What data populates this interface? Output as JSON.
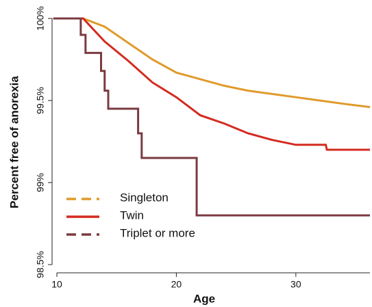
{
  "chart_data": {
    "type": "line",
    "x_label": "Age",
    "y_label": "Percent free of anorexia",
    "xlim": [
      9.6,
      36.2
    ],
    "ylim": [
      98.45,
      100.05
    ],
    "xticks": [
      10,
      20,
      30
    ],
    "yticks": [
      {
        "value": 98.5,
        "label": "98.5%"
      },
      {
        "value": 99,
        "label": "99%"
      },
      {
        "value": 99.5,
        "label": "99.5%"
      },
      {
        "value": 100,
        "label": "100%"
      }
    ],
    "legend": "lower left",
    "series": [
      {
        "name": "Singleton",
        "color": "#e09a2a",
        "step": false,
        "legend_dash": true,
        "x": [
          9.7,
          12.2,
          14,
          16,
          18,
          20,
          22,
          24,
          26,
          28,
          30,
          32,
          34,
          36.2
        ],
        "values": [
          100,
          100,
          99.95,
          99.85,
          99.75,
          99.67,
          99.63,
          99.59,
          99.56,
          99.54,
          99.52,
          99.5,
          99.48,
          99.46
        ]
      },
      {
        "name": "Twin",
        "color": "#d42a20",
        "step": false,
        "legend_dash": false,
        "x": [
          9.7,
          12.2,
          14,
          16,
          18,
          20,
          22,
          24,
          26,
          28,
          30,
          32.5,
          32.6,
          36.2
        ],
        "values": [
          100,
          100,
          99.86,
          99.74,
          99.61,
          99.52,
          99.41,
          99.36,
          99.3,
          99.26,
          99.23,
          99.23,
          99.2,
          99.2
        ]
      },
      {
        "name": "Triplet or more",
        "color": "#7a3a40",
        "step": true,
        "legend_dash": true,
        "x": [
          9.7,
          12,
          12.4,
          13.7,
          14,
          14.3,
          16.8,
          17.1,
          21.7,
          36.2
        ],
        "values": [
          100,
          99.9,
          99.79,
          99.68,
          99.56,
          99.45,
          99.3,
          99.15,
          98.8,
          98.8
        ]
      }
    ]
  }
}
